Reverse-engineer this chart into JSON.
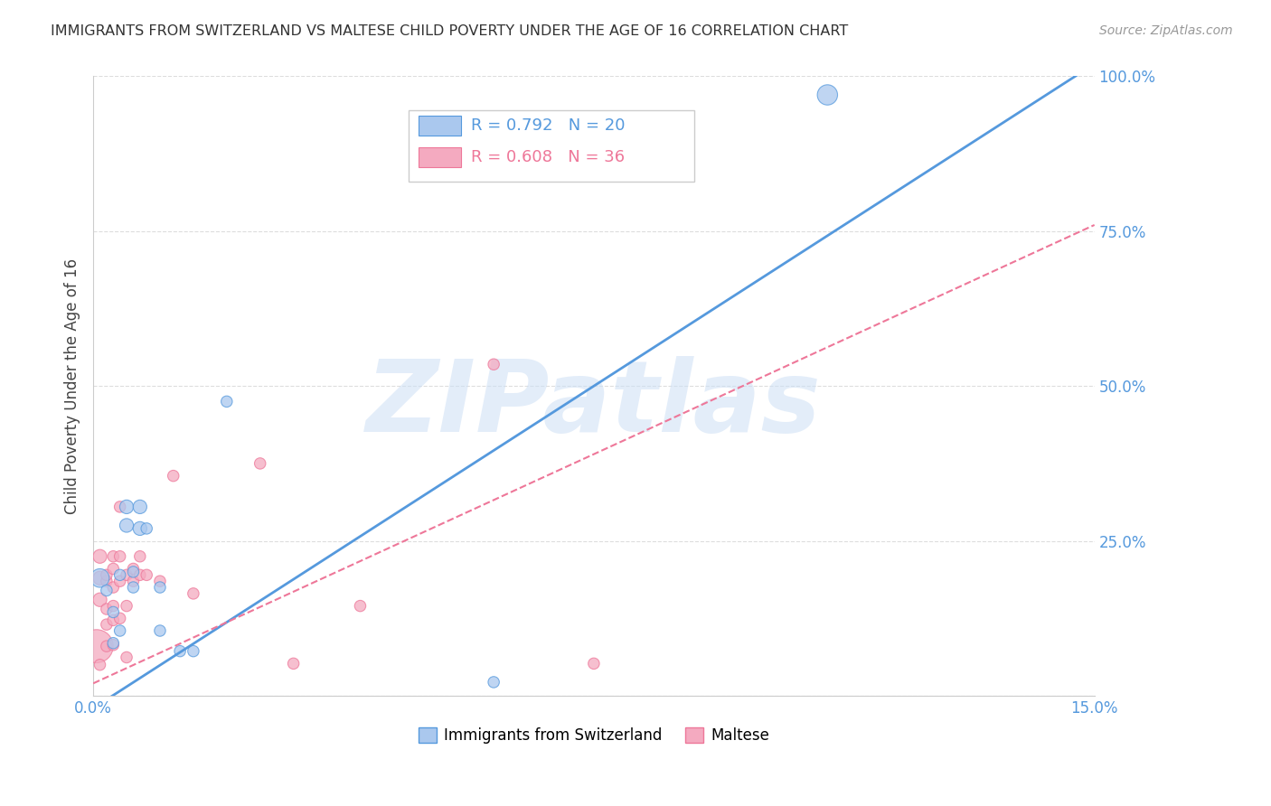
{
  "title": "IMMIGRANTS FROM SWITZERLAND VS MALTESE CHILD POVERTY UNDER THE AGE OF 16 CORRELATION CHART",
  "source": "Source: ZipAtlas.com",
  "ylabel": "Child Poverty Under the Age of 16",
  "xlim": [
    0,
    0.15
  ],
  "ylim": [
    0,
    1.0
  ],
  "watermark": "ZIPatlas",
  "legend_blue_label": "Immigrants from Switzerland",
  "legend_pink_label": "Maltese",
  "blue_R": "R = 0.792",
  "blue_N": "N = 20",
  "pink_R": "R = 0.608",
  "pink_N": "N = 36",
  "blue_color": "#aac8ee",
  "pink_color": "#f4aac0",
  "blue_line_color": "#5599dd",
  "pink_line_color": "#ee7799",
  "blue_line": [
    0.0,
    -0.02,
    0.15,
    1.02
  ],
  "pink_line": [
    0.0,
    0.02,
    0.15,
    0.76
  ],
  "blue_scatter": [
    [
      0.001,
      0.19
    ],
    [
      0.002,
      0.17
    ],
    [
      0.003,
      0.135
    ],
    [
      0.003,
      0.085
    ],
    [
      0.004,
      0.105
    ],
    [
      0.004,
      0.195
    ],
    [
      0.005,
      0.275
    ],
    [
      0.005,
      0.305
    ],
    [
      0.006,
      0.2
    ],
    [
      0.006,
      0.175
    ],
    [
      0.007,
      0.27
    ],
    [
      0.007,
      0.305
    ],
    [
      0.008,
      0.27
    ],
    [
      0.01,
      0.105
    ],
    [
      0.01,
      0.175
    ],
    [
      0.013,
      0.072
    ],
    [
      0.015,
      0.072
    ],
    [
      0.02,
      0.475
    ],
    [
      0.06,
      0.022
    ],
    [
      0.11,
      0.97
    ]
  ],
  "pink_scatter": [
    [
      0.0005,
      0.08
    ],
    [
      0.001,
      0.05
    ],
    [
      0.001,
      0.155
    ],
    [
      0.001,
      0.19
    ],
    [
      0.001,
      0.225
    ],
    [
      0.002,
      0.08
    ],
    [
      0.002,
      0.115
    ],
    [
      0.002,
      0.14
    ],
    [
      0.002,
      0.185
    ],
    [
      0.002,
      0.195
    ],
    [
      0.003,
      0.082
    ],
    [
      0.003,
      0.122
    ],
    [
      0.003,
      0.145
    ],
    [
      0.003,
      0.175
    ],
    [
      0.003,
      0.205
    ],
    [
      0.003,
      0.225
    ],
    [
      0.004,
      0.125
    ],
    [
      0.004,
      0.185
    ],
    [
      0.004,
      0.225
    ],
    [
      0.004,
      0.305
    ],
    [
      0.005,
      0.062
    ],
    [
      0.005,
      0.145
    ],
    [
      0.005,
      0.195
    ],
    [
      0.006,
      0.185
    ],
    [
      0.006,
      0.205
    ],
    [
      0.007,
      0.195
    ],
    [
      0.007,
      0.225
    ],
    [
      0.008,
      0.195
    ],
    [
      0.01,
      0.185
    ],
    [
      0.012,
      0.355
    ],
    [
      0.015,
      0.165
    ],
    [
      0.025,
      0.375
    ],
    [
      0.03,
      0.052
    ],
    [
      0.04,
      0.145
    ],
    [
      0.06,
      0.535
    ],
    [
      0.075,
      0.052
    ]
  ],
  "blue_scatter_sizes": [
    220,
    80,
    80,
    80,
    80,
    80,
    120,
    120,
    80,
    80,
    120,
    120,
    80,
    80,
    80,
    80,
    80,
    80,
    80,
    260
  ],
  "pink_scatter_sizes": [
    700,
    80,
    120,
    120,
    120,
    80,
    80,
    80,
    80,
    80,
    80,
    80,
    80,
    80,
    80,
    80,
    80,
    80,
    80,
    80,
    80,
    80,
    80,
    80,
    80,
    80,
    80,
    80,
    80,
    80,
    80,
    80,
    80,
    80,
    80,
    80
  ]
}
